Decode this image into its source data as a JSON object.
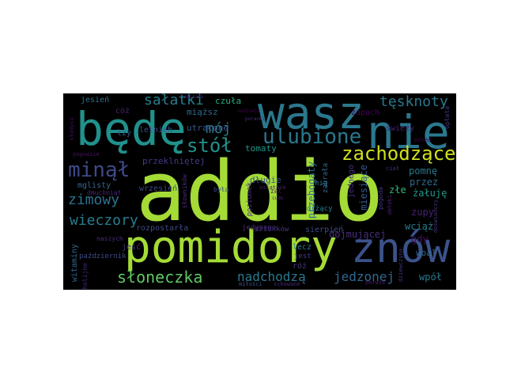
{
  "word_cloud": {
    "background": "#000000",
    "words": [
      {
        "text": "addio",
        "color": "#a5db36"
      },
      {
        "text": "pomidory",
        "color": "#a5db36"
      },
      {
        "text": "wasz",
        "color": "#2a788e"
      },
      {
        "text": "będę",
        "color": "#21918c"
      },
      {
        "text": "nie",
        "color": "#2a788e"
      },
      {
        "text": "znów",
        "color": "#3b528b"
      },
      {
        "text": "ulubione",
        "color": "#2a788e"
      },
      {
        "text": "zachodzące",
        "color": "#d0e11c"
      },
      {
        "text": "minął",
        "color": "#3e4a89"
      },
      {
        "text": "stół",
        "color": "#21918c"
      },
      {
        "text": "mój",
        "color": "#2a788e"
      },
      {
        "text": "sałatki",
        "color": "#287c8e"
      },
      {
        "text": "tęsknoty",
        "color": "#2a788e"
      },
      {
        "text": "zimowy",
        "color": "#2c728e"
      },
      {
        "text": "wieczory",
        "color": "#287c8e"
      },
      {
        "text": "słoneczka",
        "color": "#5ec962"
      },
      {
        "text": "nadchodzą",
        "color": "#2a788e"
      },
      {
        "text": "jedzonej",
        "color": "#31688e"
      },
      {
        "text": "przeklniętej",
        "color": "#443983"
      },
      {
        "text": "tomaty",
        "color": "#1f988b"
      },
      {
        "text": "długie",
        "color": "#3b528b"
      },
      {
        "text": "miąższ",
        "color": "#31688e"
      },
      {
        "text": "utracone",
        "color": "#3b528b"
      },
      {
        "text": "czuła",
        "color": "#27ad81"
      },
      {
        "text": "jesień",
        "color": "#2c728e"
      },
      {
        "text": "cóż",
        "color": "#481f70"
      },
      {
        "text": "jeść",
        "color": "#46337e"
      },
      {
        "text": "letnich",
        "color": "#3b528b"
      },
      {
        "text": "łzy",
        "color": "#375b8d"
      },
      {
        "text": "mglisty",
        "color": "#31688e"
      },
      {
        "text": "dmuchniąt",
        "color": "#482878"
      },
      {
        "text": "wrzesień",
        "color": "#3e4a89"
      },
      {
        "text": "zapach",
        "color": "#440154"
      },
      {
        "text": "świeży",
        "color": "#482173"
      },
      {
        "text": "pomnę",
        "color": "#2a788e"
      },
      {
        "text": "przez",
        "color": "#31688e"
      },
      {
        "text": "żałuję",
        "color": "#1f988b"
      },
      {
        "text": "złe",
        "color": "#32b67a"
      },
      {
        "text": "zupy",
        "color": "#482173"
      },
      {
        "text": "gdy",
        "color": "#471063"
      },
      {
        "text": "wciąż",
        "color": "#287c8e"
      },
      {
        "text": "woal",
        "color": "#31688e"
      },
      {
        "text": "wpół",
        "color": "#2a788e"
      },
      {
        "text": "dojmującej",
        "color": "#472d7b"
      },
      {
        "text": "rozpostarła",
        "color": "#3e4a89"
      },
      {
        "text": "sierpień",
        "color": "#3e4a89"
      },
      {
        "text": "dzionków",
        "color": "#46337e"
      },
      {
        "text": "lecz",
        "color": "#2a788e"
      },
      {
        "text": "jest",
        "color": "#443983"
      },
      {
        "text": "róż",
        "color": "#46337e"
      },
      {
        "text": "jedynego",
        "color": "#472d7b"
      },
      {
        "text": "schowane",
        "color": "#482878"
      },
      {
        "text": "miłości",
        "color": "#3b528b"
      },
      {
        "text": "naszych",
        "color": "#472d7b"
      },
      {
        "text": "październik",
        "color": "#3e4a89"
      },
      {
        "text": "witaminy",
        "color": "#31688e"
      },
      {
        "text": "melancholijne",
        "color": "#482878"
      },
      {
        "text": "przebogaty",
        "color": "#2c728e"
      },
      {
        "text": "miesiące",
        "color": "#375b8d"
      },
      {
        "text": "jednego",
        "color": "#472d7b"
      },
      {
        "text": "drżący",
        "color": "#287c8e"
      },
      {
        "text": "zabrała",
        "color": "#31688e"
      },
      {
        "text": "nią",
        "color": "#2c728e"
      },
      {
        "text": "poziomek",
        "color": "#472d7b"
      },
      {
        "text": "była",
        "color": "#3b528b"
      },
      {
        "text": "słowników",
        "color": "#472d7b"
      },
      {
        "text": "zal",
        "color": "#471063"
      },
      {
        "text": "cudo",
        "color": "#482173"
      },
      {
        "text": "ostatnie",
        "color": "#481f70"
      },
      {
        "text": "opłata",
        "color": "#46337e"
      },
      {
        "text": "przed",
        "color": "#440154"
      },
      {
        "text": "ciał",
        "color": "#472d7b"
      },
      {
        "text": "porwie",
        "color": "#481f70"
      },
      {
        "text": "dziewczyna",
        "color": "#46337e"
      },
      {
        "text": "pogoda",
        "color": "#46337e"
      },
      {
        "text": "obłoki",
        "color": "#482173"
      },
      {
        "text": "pogodzie",
        "color": "#471063"
      },
      {
        "text": "słodycz",
        "color": "#471063"
      },
      {
        "text": "nadzieja",
        "color": "#440154"
      },
      {
        "text": "omszałe",
        "color": "#481f70"
      },
      {
        "text": "poranki",
        "color": "#472d7b"
      },
      {
        "text": "doświadczy",
        "color": "#46337e"
      }
    ]
  }
}
